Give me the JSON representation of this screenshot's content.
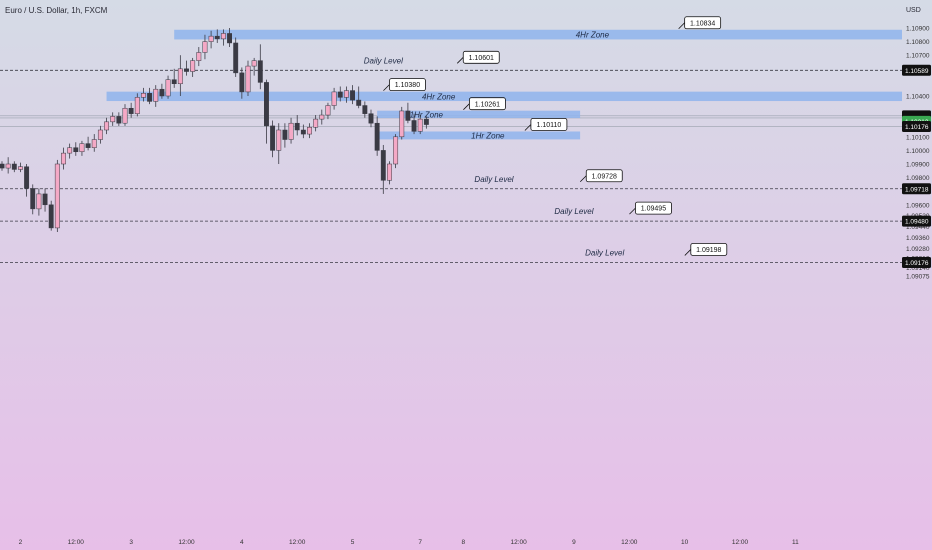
{
  "header": {
    "symbol_title": "Euro / U.S. Dollar, 1h, FXCM",
    "currency": "USD"
  },
  "colors": {
    "bg_top": "#d5dbe6",
    "bg_bottom": "#e7bfe8",
    "bull_fill": "#f4a9c6",
    "bear_fill": "#3a3a44",
    "wick": "#3a3a44",
    "zone": "#8fb4ec",
    "level_line": "#3a3a44",
    "current_price_bg": "#3aa852"
  },
  "chart_data": {
    "type": "candlestick",
    "symbol": "EURUSD",
    "timeframe": "1h",
    "ylim": [
      1.0906,
      1.1095
    ],
    "y_ticks": [
      "1.10900",
      "1.10800",
      "1.10700",
      "1.10400",
      "1.10100",
      "1.10000",
      "1.09900",
      "1.09800",
      "1.09600",
      "1.09520",
      "1.09440",
      "1.09360",
      "1.09280",
      "1.09210",
      "1.09140",
      "1.09075"
    ],
    "x_ticks": [
      {
        "label": "2",
        "idx": 3
      },
      {
        "label": "12:00",
        "idx": 12
      },
      {
        "label": "3",
        "idx": 21
      },
      {
        "label": "12:00",
        "idx": 30
      },
      {
        "label": "4",
        "idx": 39
      },
      {
        "label": "12:00",
        "idx": 48
      },
      {
        "label": "5",
        "idx": 57
      },
      {
        "label": "7",
        "idx": 68
      },
      {
        "label": "8",
        "idx": 75
      },
      {
        "label": "12:00",
        "idx": 84
      },
      {
        "label": "9",
        "idx": 93
      },
      {
        "label": "12:00",
        "idx": 102
      },
      {
        "label": "10",
        "idx": 111
      },
      {
        "label": "12:00",
        "idx": 120
      },
      {
        "label": "11",
        "idx": 129
      }
    ],
    "candles": [
      [
        1.099,
        1.0992,
        1.0985,
        1.0987
      ],
      [
        1.0987,
        1.0995,
        1.0983,
        1.099
      ],
      [
        1.099,
        1.0992,
        1.0984,
        1.0986
      ],
      [
        1.0986,
        1.0991,
        1.0984,
        1.0988
      ],
      [
        1.0988,
        1.099,
        1.0966,
        1.0972
      ],
      [
        1.0972,
        1.0975,
        1.0953,
        1.0957
      ],
      [
        1.0957,
        1.0972,
        1.0952,
        1.0968
      ],
      [
        1.0968,
        1.0972,
        1.0955,
        1.096
      ],
      [
        1.096,
        1.0963,
        1.0941,
        1.0943
      ],
      [
        1.0943,
        1.0993,
        1.094,
        1.099
      ],
      [
        1.099,
        1.1002,
        1.0986,
        1.0998
      ],
      [
        1.0998,
        1.1005,
        1.0994,
        1.1002
      ],
      [
        1.1002,
        1.1006,
        1.0996,
        1.0999
      ],
      [
        1.0999,
        1.1007,
        1.0996,
        1.1005
      ],
      [
        1.1005,
        1.101,
        1.1,
        1.1002
      ],
      [
        1.1002,
        1.1012,
        1.0999,
        1.1008
      ],
      [
        1.1008,
        1.1018,
        1.1005,
        1.1015
      ],
      [
        1.1015,
        1.1024,
        1.1012,
        1.1021
      ],
      [
        1.1021,
        1.1028,
        1.1018,
        1.1025
      ],
      [
        1.1025,
        1.1028,
        1.1018,
        1.102
      ],
      [
        1.102,
        1.1034,
        1.1018,
        1.1031
      ],
      [
        1.1031,
        1.1035,
        1.1024,
        1.1027
      ],
      [
        1.1027,
        1.1042,
        1.1025,
        1.1039
      ],
      [
        1.1039,
        1.1046,
        1.1036,
        1.1042
      ],
      [
        1.1042,
        1.1046,
        1.1034,
        1.1036
      ],
      [
        1.1036,
        1.1048,
        1.1032,
        1.1045
      ],
      [
        1.1045,
        1.1049,
        1.1038,
        1.104
      ],
      [
        1.104,
        1.1055,
        1.1038,
        1.1052
      ],
      [
        1.1052,
        1.106,
        1.1046,
        1.1049
      ],
      [
        1.1049,
        1.107,
        1.104,
        1.106
      ],
      [
        1.106,
        1.1066,
        1.1055,
        1.1058
      ],
      [
        1.1058,
        1.1068,
        1.1054,
        1.1066
      ],
      [
        1.1066,
        1.1076,
        1.1062,
        1.1072
      ],
      [
        1.1072,
        1.1085,
        1.1067,
        1.108
      ],
      [
        1.108,
        1.1088,
        1.1075,
        1.1084
      ],
      [
        1.1084,
        1.1089,
        1.1079,
        1.1082
      ],
      [
        1.1082,
        1.1089,
        1.1077,
        1.1086
      ],
      [
        1.1086,
        1.109,
        1.1076,
        1.1079
      ],
      [
        1.1079,
        1.1083,
        1.1054,
        1.1057
      ],
      [
        1.1057,
        1.1061,
        1.1038,
        1.1043
      ],
      [
        1.1043,
        1.1066,
        1.104,
        1.1062
      ],
      [
        1.1062,
        1.1068,
        1.1055,
        1.1066
      ],
      [
        1.1066,
        1.1078,
        1.1045,
        1.105
      ],
      [
        1.105,
        1.1052,
        1.1005,
        1.1018
      ],
      [
        1.1018,
        1.1022,
        1.0995,
        1.1
      ],
      [
        1.1,
        1.102,
        1.099,
        1.1015
      ],
      [
        1.1015,
        1.102,
        1.1002,
        1.1008
      ],
      [
        1.1008,
        1.1024,
        1.1005,
        1.102
      ],
      [
        1.102,
        1.1026,
        1.1011,
        1.1015
      ],
      [
        1.1015,
        1.1019,
        1.1009,
        1.1012
      ],
      [
        1.1012,
        1.102,
        1.1009,
        1.1017
      ],
      [
        1.1017,
        1.1026,
        1.1014,
        1.1023
      ],
      [
        1.1023,
        1.103,
        1.1019,
        1.1026
      ],
      [
        1.1026,
        1.1035,
        1.1023,
        1.1033
      ],
      [
        1.1033,
        1.1046,
        1.103,
        1.1043
      ],
      [
        1.1043,
        1.1047,
        1.1036,
        1.1039
      ],
      [
        1.1039,
        1.1047,
        1.1035,
        1.1044
      ],
      [
        1.1044,
        1.1048,
        1.1034,
        1.1037
      ],
      [
        1.1037,
        1.1047,
        1.1031,
        1.1033
      ],
      [
        1.1033,
        1.1036,
        1.1024,
        1.1027
      ],
      [
        1.1027,
        1.103,
        1.1017,
        1.102
      ],
      [
        1.102,
        1.1025,
        1.0996,
        1.1
      ],
      [
        1.1,
        1.1004,
        1.0968,
        1.0978
      ],
      [
        1.0978,
        1.0992,
        1.0975,
        1.099
      ],
      [
        1.099,
        1.1012,
        1.0987,
        1.101
      ],
      [
        1.101,
        1.1032,
        1.1008,
        1.1029
      ],
      [
        1.1029,
        1.1035,
        1.102,
        1.1022
      ],
      [
        1.1022,
        1.1027,
        1.1012,
        1.1014
      ],
      [
        1.1014,
        1.1026,
        1.1012,
        1.1023
      ],
      [
        1.1023,
        1.1025,
        1.1016,
        1.1019
      ]
    ],
    "zones": [
      {
        "label": "4Hr Zone",
        "top": 1.10865,
        "bottom": 1.10838,
        "x_start_idx": 28,
        "x_end_idx": 148,
        "callout": "1.10834",
        "label_idx": 96,
        "callout_idx": 111
      },
      {
        "label": "4Hr Zone",
        "top": 1.1041,
        "bottom": 1.10385,
        "x_start_idx": 17,
        "x_end_idx": 148,
        "callout": "1.10380",
        "label_idx": 71,
        "callout_idx": 63
      },
      {
        "label": "1Hr Zone",
        "top": 1.1027,
        "bottom": 1.1026,
        "x_start_idx": 61,
        "x_end_idx": 94,
        "callout": "1.10261",
        "label_idx": 69,
        "callout_idx": 76
      },
      {
        "label": "1Hr Zone",
        "top": 1.10117,
        "bottom": 1.10103,
        "x_start_idx": 61,
        "x_end_idx": 94,
        "callout": "1.10110",
        "label_idx": 79,
        "callout_idx": 86
      }
    ],
    "levels": [
      {
        "label": "Daily Level",
        "price": 1.10589,
        "callout": "1.10601",
        "axis": "1.10589",
        "label_idx": 62,
        "callout_idx": 75
      },
      {
        "label": "Daily Level",
        "price": 1.09718,
        "callout": "1.09728",
        "axis": "1.09718",
        "label_idx": 80,
        "callout_idx": 95
      },
      {
        "label": "Daily Level",
        "price": 1.0948,
        "callout": "1.09495",
        "axis": "1.09480",
        "label_idx": 93,
        "callout_idx": 103
      },
      {
        "label": "Daily Level",
        "price": 1.09176,
        "callout": "1.09198",
        "axis": "1.09176",
        "label_idx": 98,
        "callout_idx": 112
      }
    ],
    "price_tags": [
      {
        "label": "1.10254",
        "price": 1.10254,
        "kind": "dark"
      },
      {
        "label": "1.10239",
        "price": 1.10239,
        "kind": "dark"
      },
      {
        "label": "1.10213",
        "price": 1.10213,
        "kind": "current"
      },
      {
        "label": "1.10176",
        "price": 1.10176,
        "kind": "dark"
      }
    ],
    "guide_lines": [
      1.10254,
      1.10239,
      1.10176
    ]
  }
}
